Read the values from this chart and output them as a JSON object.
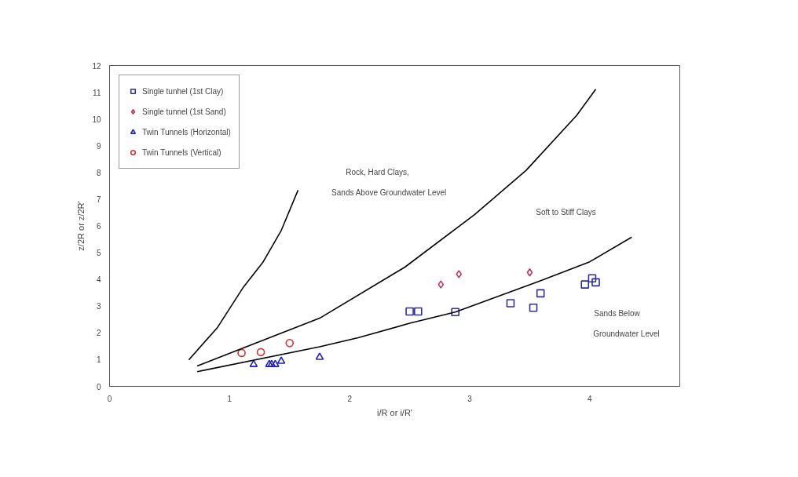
{
  "chart_data": {
    "type": "scatter",
    "xlabel": "i/R or i/R'",
    "ylabel": "z/2R or z/2R'",
    "xlim": [
      0,
      4.75
    ],
    "ylim": [
      0,
      12
    ],
    "xticks": [
      0,
      1,
      2,
      3,
      4
    ],
    "yticks": [
      0,
      1,
      2,
      3,
      4,
      5,
      6,
      7,
      8,
      9,
      10,
      11,
      12
    ],
    "grid": false,
    "legend": "top left",
    "series": [
      {
        "name": "Single tunhel (1st Clay)",
        "marker": "square",
        "color": "#2e2e9c",
        "x": [
          2.5,
          2.57,
          2.88,
          3.34,
          3.53,
          3.59,
          3.96,
          4.02,
          4.05
        ],
        "values": [
          2.8,
          2.8,
          2.78,
          3.11,
          2.94,
          3.48,
          3.81,
          4.04,
          3.89
        ]
      },
      {
        "name": "Single tunnel (1st Sand)",
        "marker": "diamond",
        "color": "#c0306a",
        "x": [
          2.76,
          2.91,
          3.5
        ],
        "values": [
          3.81,
          4.2,
          4.26
        ]
      },
      {
        "name": "Twin Tunnels (Horizontal)",
        "marker": "triangle",
        "color": "#2020c0",
        "x": [
          1.2,
          1.33,
          1.35,
          1.38,
          1.43,
          1.75
        ],
        "values": [
          0.82,
          0.82,
          0.82,
          0.82,
          0.94,
          1.09
        ]
      },
      {
        "name": "Twin Tunnels (Vertical)",
        "marker": "circle",
        "color": "#d03030",
        "x": [
          1.1,
          1.26,
          1.5
        ],
        "values": [
          1.25,
          1.28,
          1.62
        ]
      },
      {
        "type": "line",
        "marker": "none",
        "line_style": "solid",
        "color": "#000000",
        "x": [
          0.66,
          0.9,
          1.11,
          1.28,
          1.43,
          1.57
        ],
        "values": [
          0.99,
          2.21,
          3.68,
          4.66,
          5.83,
          7.34
        ]
      },
      {
        "type": "line",
        "marker": "none",
        "line_style": "solid",
        "color": "#000000",
        "x": [
          0.73,
          1.11,
          1.75,
          2.46,
          3.04,
          3.47,
          3.89,
          4.05
        ],
        "values": [
          0.76,
          1.43,
          2.55,
          4.46,
          6.42,
          8.08,
          10.13,
          11.11
        ]
      },
      {
        "type": "line",
        "marker": "none",
        "line_style": "solid",
        "color": "#000000",
        "x": [
          0.73,
          1.75,
          2.07,
          2.5,
          2.88,
          3.57,
          4.0,
          4.35
        ],
        "values": [
          0.55,
          1.48,
          1.82,
          2.36,
          2.78,
          3.92,
          4.66,
          5.58
        ]
      }
    ],
    "annotations": [
      "Rock, Hard Clays,",
      "Sands Above Groundwater Level",
      "Soft to Stiff Clays",
      "Sands Below",
      "Groundwater Level"
    ]
  }
}
